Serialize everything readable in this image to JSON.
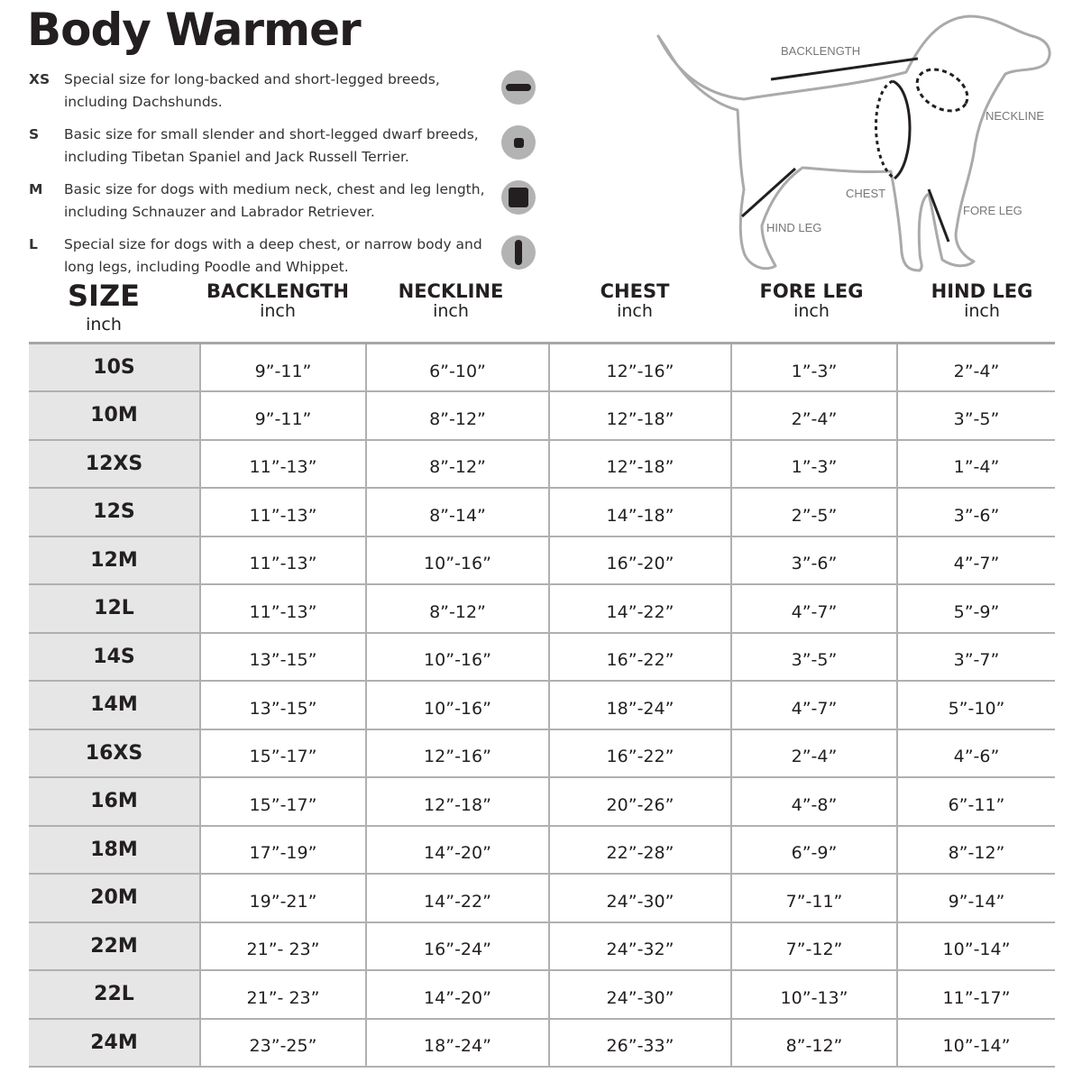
{
  "title": "Body Warmer",
  "sizes_info": [
    {
      "code": "XS",
      "text": "Special size for long-backed and short-legged breeds, including Dachshunds.",
      "icon": "horizontal-bar-icon"
    },
    {
      "code": "S",
      "text": "Basic size for small slender and short-legged dwarf breeds, including Tibetan Spaniel and Jack Russell Terrier.",
      "icon": "small-square-icon"
    },
    {
      "code": "M",
      "text": "Basic size for dogs with medium neck, chest and leg length, including Schnauzer and Labrador Retriever.",
      "icon": "large-square-icon"
    },
    {
      "code": "L",
      "text": "Special size for dogs with a deep chest, or narrow body and long legs, including Poodle and Whippet.",
      "icon": "vertical-bar-icon"
    }
  ],
  "diagram": {
    "backlength": "BACKLENGTH",
    "neckline": "NECKLINE",
    "chest": "CHEST",
    "fore_leg": "FORE LEG",
    "hind_leg": "HIND LEG"
  },
  "table": {
    "headers": [
      {
        "label": "SIZE",
        "unit": "inch"
      },
      {
        "label": "BACKLENGTH",
        "unit": "inch"
      },
      {
        "label": "NECKLINE",
        "unit": "inch"
      },
      {
        "label": "CHEST",
        "unit": "inch"
      },
      {
        "label": "FORE LEG",
        "unit": "inch"
      },
      {
        "label": "HIND LEG",
        "unit": "inch"
      }
    ],
    "rows": [
      [
        "10S",
        "9”-11”",
        "6”-10”",
        "12”-16”",
        "1”-3”",
        "2”-4”"
      ],
      [
        "10M",
        "9”-11”",
        "8”-12”",
        "12”-18”",
        "2”-4”",
        "3”-5”"
      ],
      [
        "12XS",
        "11”-13”",
        "8”-12”",
        "12”-18”",
        "1”-3”",
        "1”-4”"
      ],
      [
        "12S",
        "11”-13”",
        "8”-14”",
        "14”-18”",
        "2”-5”",
        "3”-6”"
      ],
      [
        "12M",
        "11”-13”",
        "10”-16”",
        "16”-20”",
        "3”-6”",
        "4”-7”"
      ],
      [
        "12L",
        "11”-13”",
        "8”-12”",
        "14”-22”",
        "4”-7”",
        "5”-9”"
      ],
      [
        "14S",
        "13”-15”",
        "10”-16”",
        "16”-22”",
        "3”-5”",
        "3”-7”"
      ],
      [
        "14M",
        "13”-15”",
        "10”-16”",
        "18”-24”",
        "4”-7”",
        "5”-10”"
      ],
      [
        "16XS",
        "15”-17”",
        "12”-16”",
        "16”-22”",
        "2”-4”",
        "4”-6”"
      ],
      [
        "16M",
        "15”-17”",
        "12”-18”",
        "20”-26”",
        "4”-8”",
        "6”-11”"
      ],
      [
        "18M",
        "17”-19”",
        "14”-20”",
        "22”-28”",
        "6”-9”",
        "8”-12”"
      ],
      [
        "20M",
        "19”-21”",
        "14”-22”",
        "24”-30”",
        "7”-11”",
        "9”-14”"
      ],
      [
        "22M",
        "21”- 23”",
        "16”-24”",
        "24”-32”",
        "7”-12”",
        "10”-14”"
      ],
      [
        "22L",
        "21”- 23”",
        "14”-20”",
        "24”-30”",
        "10”-13”",
        "11”-17”"
      ],
      [
        "24M",
        "23”-25”",
        "18”-24”",
        "26”-33”",
        "8”-12”",
        "10”-14”"
      ]
    ]
  }
}
